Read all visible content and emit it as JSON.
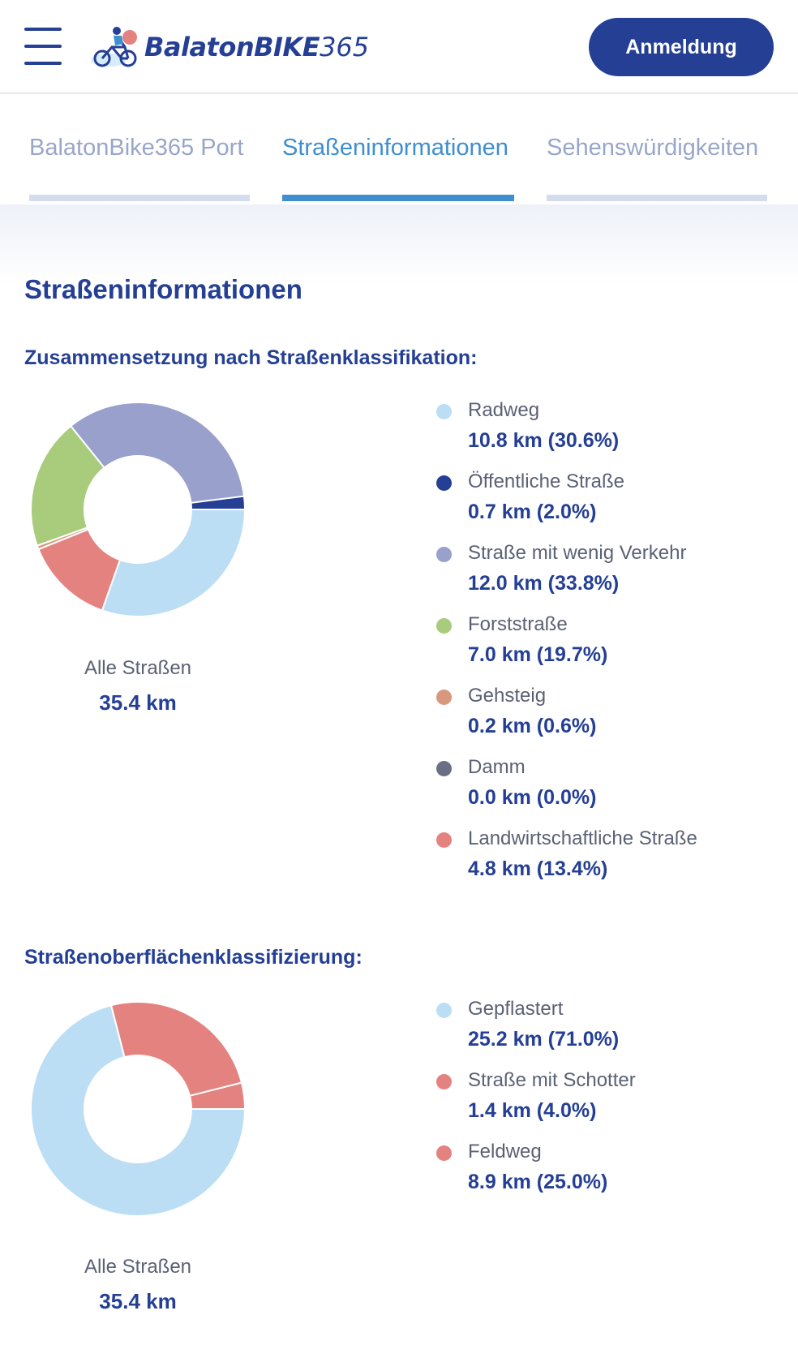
{
  "header": {
    "logo_brand": "BalatonBIKE",
    "logo_number": "365",
    "login_label": "Anmeldung"
  },
  "tabs": [
    {
      "label": "BalatonBike365 Port",
      "active": false
    },
    {
      "label": "Straßeninformationen",
      "active": true
    },
    {
      "label": "Sehenswürdigkeiten",
      "active": false
    }
  ],
  "page_title": "Straßeninformationen",
  "road_classification": {
    "title": "Zusammensetzung nach Straßenklassifikation:",
    "total_label": "Alle Straßen",
    "total_value": "35.4 km",
    "items": [
      {
        "label": "Radweg",
        "value": "10.8 km (30.6%)",
        "color": "#bcdef5"
      },
      {
        "label": "Öffentliche Straße",
        "value": "0.7 km (2.0%)",
        "color": "#243f94"
      },
      {
        "label": "Straße mit wenig Verkehr",
        "value": "12.0 km (33.8%)",
        "color": "#98a0cb"
      },
      {
        "label": "Forststraße",
        "value": "7.0 km (19.7%)",
        "color": "#a8cc7c"
      },
      {
        "label": "Gehsteig",
        "value": "0.2 km (0.6%)",
        "color": "#d9987e"
      },
      {
        "label": "Damm",
        "value": "0.0 km (0.0%)",
        "color": "#6a6f86"
      },
      {
        "label": "Landwirtschaftliche Straße",
        "value": "4.8 km (13.4%)",
        "color": "#e4827f"
      }
    ]
  },
  "surface_classification": {
    "title": "Straßenoberflächenklassifizierung:",
    "total_label": "Alle Straßen",
    "total_value": "35.4 km",
    "items": [
      {
        "label": "Gepflastert",
        "value": "25.2 km (71.0%)",
        "color": "#bcdef5"
      },
      {
        "label": "Straße mit Schotter",
        "value": "1.4 km (4.0%)",
        "color": "#e4827f"
      },
      {
        "label": "Feldweg",
        "value": "8.9 km (25.0%)",
        "color": "#e4827f"
      }
    ]
  },
  "chart_data": [
    {
      "type": "pie",
      "title": "Zusammensetzung nach Straßenklassifikation:",
      "unit": "km",
      "categories": [
        "Radweg",
        "Öffentliche Straße",
        "Straße mit wenig Verkehr",
        "Forststraße",
        "Gehsteig",
        "Damm",
        "Landwirtschaftliche Straße"
      ],
      "values": [
        10.8,
        0.7,
        12.0,
        7.0,
        0.2,
        0.0,
        4.8
      ],
      "percent": [
        30.6,
        2.0,
        33.8,
        19.7,
        0.6,
        0.0,
        13.4
      ],
      "draw_order": [
        0,
        6,
        4,
        3,
        2,
        1
      ],
      "colors": [
        "#bcdef5",
        "#243f94",
        "#98a0cb",
        "#a8cc7c",
        "#d9987e",
        "#6a6f86",
        "#e4827f"
      ]
    },
    {
      "type": "pie",
      "title": "Straßenoberflächenklassifizierung:",
      "unit": "km",
      "categories": [
        "Gepflastert",
        "Straße mit Schotter",
        "Feldweg"
      ],
      "values": [
        25.2,
        1.4,
        8.9
      ],
      "percent": [
        71.0,
        4.0,
        25.0
      ],
      "draw_order": [
        0,
        2,
        1
      ],
      "colors": [
        "#bcdef5",
        "#e4827f",
        "#e4827f"
      ]
    }
  ]
}
